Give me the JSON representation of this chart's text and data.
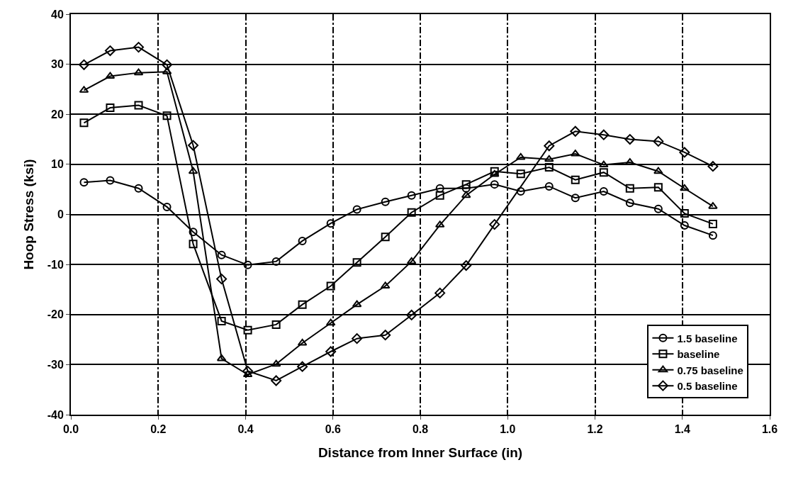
{
  "chart_data": {
    "type": "line",
    "xlabel": "Distance from Inner Surface (in)",
    "ylabel": "Hoop Stress (ksi)",
    "x": [
      0.03,
      0.09,
      0.155,
      0.22,
      0.28,
      0.345,
      0.405,
      0.47,
      0.53,
      0.595,
      0.655,
      0.72,
      0.78,
      0.845,
      0.905,
      0.97,
      1.03,
      1.095,
      1.155,
      1.22,
      1.28,
      1.345,
      1.405,
      1.47
    ],
    "series": [
      {
        "name": "1.5 baseline",
        "color": "#000000",
        "marker": "circle",
        "values": [
          6.4,
          6.8,
          5.2,
          1.5,
          -3.5,
          -8.1,
          -10.1,
          -9.4,
          -5.3,
          -1.8,
          1,
          2.5,
          3.8,
          5.2,
          5.2,
          6,
          4.6,
          5.6,
          3.3,
          4.6,
          2.3,
          1.1,
          -2.2,
          -4.2
        ]
      },
      {
        "name": "baseline",
        "color": "#000000",
        "marker": "square",
        "values": [
          18.3,
          21.3,
          21.8,
          19.7,
          -5.9,
          -21.3,
          -23.1,
          -22,
          -18,
          -14.3,
          -9.6,
          -4.5,
          0.4,
          3.8,
          6,
          8.6,
          8.1,
          9.4,
          6.9,
          8.4,
          5.2,
          5.4,
          0.2,
          -1.9
        ]
      },
      {
        "name": "0.75 baseline",
        "color": "#000000",
        "marker": "triangle",
        "values": [
          24.8,
          27.6,
          28.3,
          28.5,
          8.6,
          -28.8,
          -32,
          -29.9,
          -25.7,
          -21.7,
          -18,
          -14.3,
          -9.4,
          -2.1,
          3.8,
          8,
          11.4,
          11,
          12.1,
          9.9,
          10.4,
          8.6,
          5.2,
          1.6
        ]
      },
      {
        "name": "0.5 baseline",
        "color": "#000000",
        "marker": "diamond",
        "x": [
          0.03,
          0.09,
          0.155,
          0.22,
          0.28,
          0.345,
          0.405,
          0.47,
          0.53,
          0.595,
          0.655,
          0.72,
          0.78,
          0.845,
          0.905,
          0.97,
          1.095,
          1.155,
          1.22,
          1.28,
          1.345,
          1.405,
          1.47
        ],
        "values": [
          29.9,
          32.7,
          33.4,
          29.9,
          13.8,
          -12.9,
          -31.3,
          -33.2,
          -30.4,
          -27.4,
          -24.8,
          -24.1,
          -20.1,
          -15.7,
          -10.2,
          -2,
          13.7,
          16.6,
          15.9,
          15,
          14.6,
          12.4,
          9.6
        ]
      }
    ],
    "xlim": [
      0,
      1.6
    ],
    "xticks": [
      {
        "value": 0,
        "label": "0.0"
      },
      0.2,
      0.4,
      0.6,
      0.8,
      {
        "value": 1,
        "label": "1.0"
      },
      1.2,
      1.4,
      1.6
    ],
    "ylim": [
      -40,
      40
    ],
    "yticks": [
      -40,
      -30,
      -20,
      -10,
      0,
      10,
      20,
      30,
      40
    ],
    "grid": true,
    "legend": "bottom right",
    "line_style": "solid"
  }
}
